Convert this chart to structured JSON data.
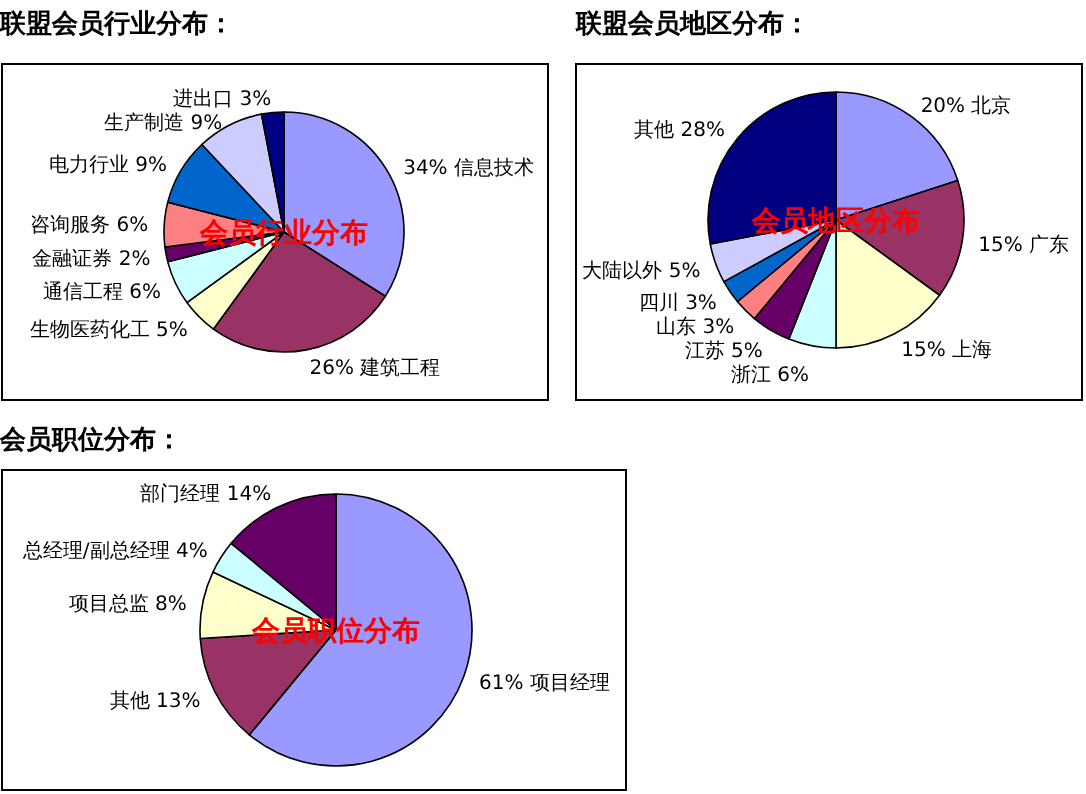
{
  "chart_data": [
    {
      "type": "pie",
      "title": "联盟会员行业分布：",
      "subtitle": "会员行业分布",
      "categories": [
        "信息技术",
        "建筑工程",
        "生物医药化工",
        "通信工程",
        "金融证券",
        "咨询服务",
        "电力行业",
        "生产制造",
        "进出口"
      ],
      "values": [
        34,
        26,
        5,
        6,
        2,
        6,
        9,
        9,
        3
      ],
      "value_labels": [
        "34%",
        "26%",
        "5%",
        "6%",
        "2%",
        "6%",
        "9%",
        "9%",
        "3%"
      ],
      "colors": [
        "#9999ff",
        "#993366",
        "#ffffcc",
        "#ccffff",
        "#660066",
        "#ff8080",
        "#0066cc",
        "#ccccff",
        "#000080"
      ]
    },
    {
      "type": "pie",
      "title": "联盟会员地区分布：",
      "subtitle": "会员地区分布",
      "categories": [
        "北京",
        "广东",
        "上海",
        "浙江",
        "江苏",
        "山东",
        "四川",
        "大陆以外",
        "其他"
      ],
      "values": [
        20,
        15,
        15,
        6,
        5,
        3,
        3,
        5,
        28
      ],
      "value_labels": [
        "20%",
        "15%",
        "15%",
        "6%",
        "5%",
        "3%",
        "3%",
        "5%",
        "28%"
      ],
      "colors": [
        "#9999ff",
        "#993366",
        "#ffffcc",
        "#ccffff",
        "#660066",
        "#ff8080",
        "#0066cc",
        "#ccccff",
        "#000080"
      ]
    },
    {
      "type": "pie",
      "title": "会员职位分布：",
      "subtitle": "会员职位分布",
      "categories": [
        "项目经理",
        "其他",
        "项目总监",
        "总经理/副总经理",
        "部门经理"
      ],
      "values": [
        61,
        13,
        8,
        4,
        14
      ],
      "value_labels": [
        "61%",
        "13%",
        "8%",
        "4%",
        "14%"
      ],
      "colors": [
        "#9999ff",
        "#993366",
        "#ffffcc",
        "#ccffff",
        "#660066"
      ]
    }
  ]
}
